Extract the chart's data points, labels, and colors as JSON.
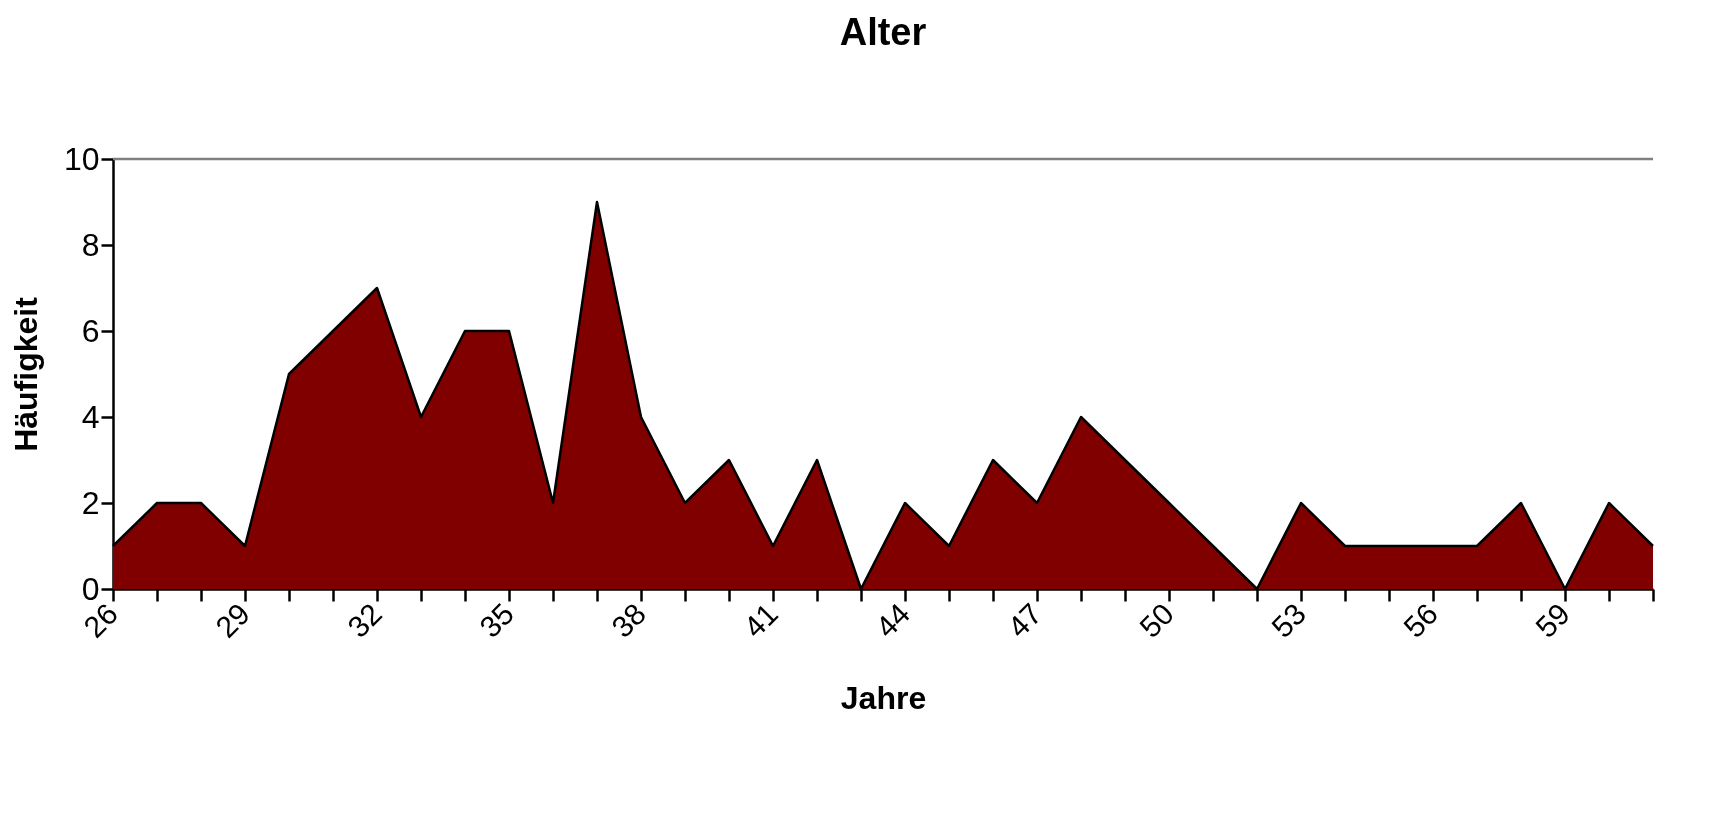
{
  "chart_data": {
    "type": "area",
    "title": "Alter",
    "xlabel": "Jahre",
    "ylabel": "Häufigkeit",
    "categories": [
      "26",
      null,
      null,
      "29",
      null,
      null,
      "32",
      null,
      null,
      "35",
      null,
      null,
      "38",
      null,
      null,
      "41",
      null,
      null,
      "44",
      null,
      null,
      "47",
      null,
      null,
      "50",
      null,
      null,
      "53",
      null,
      null,
      "56",
      null,
      null,
      "59",
      null,
      null
    ],
    "series": [
      {
        "color": "#800000",
        "values": [
          1,
          2,
          2,
          1,
          5,
          6,
          7,
          4,
          6,
          6,
          2,
          9,
          4,
          2,
          3,
          1,
          3,
          0,
          2,
          1,
          3,
          2,
          4,
          3,
          2,
          1,
          0,
          2,
          1,
          1,
          1,
          1,
          2,
          0,
          2,
          1
        ]
      }
    ],
    "ylim": [
      0,
      10
    ],
    "yticks": [
      0,
      2,
      4,
      6,
      8,
      10
    ],
    "grid": false,
    "line_style": "solid",
    "marker": "none"
  }
}
